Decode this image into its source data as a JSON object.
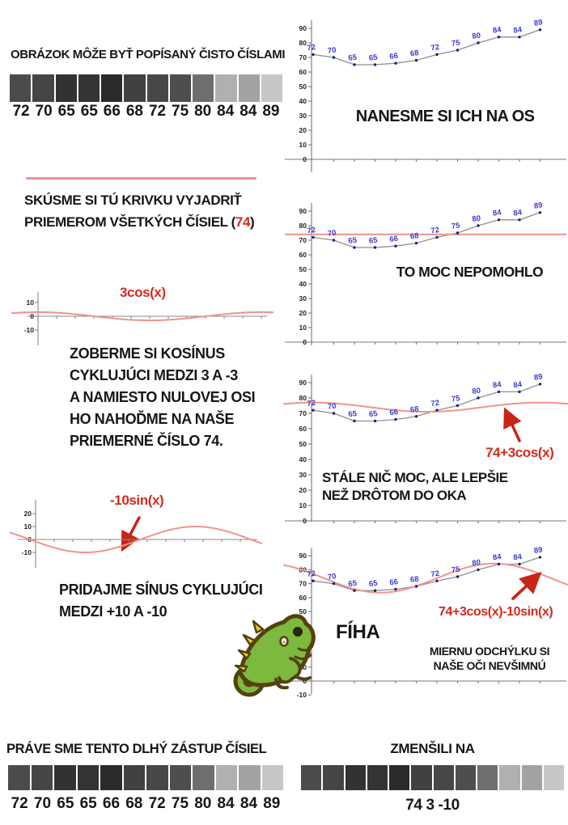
{
  "colors": {
    "salmon": "#f2938a",
    "hand_red": "#d42a1e",
    "blue": "#3b3bd2",
    "axis_gray": "#777777",
    "line_gray": "#8e8e8e",
    "dot_navy": "#20207a"
  },
  "strip": {
    "values": [
      72,
      70,
      65,
      65,
      66,
      68,
      72,
      75,
      80,
      84,
      84,
      89
    ],
    "grays": [
      "#4b4b4b",
      "#454545",
      "#323232",
      "#343434",
      "#2a2a2a",
      "#414141",
      "#474747",
      "#4e4e4e",
      "#6e6e6e",
      "#b0b0b0",
      "#a3a3a3",
      "#c7c7c7"
    ]
  },
  "left": {
    "title": "OBRÁZOK MÔŽE BYŤ POPÍSANÝ ČISTO ČÍSLAMI",
    "skusme_l1": "SKÚSME SI TÚ KRIVKU VYJADRIŤ",
    "avg_prefix": "PRIEMEROM VŠETKÝCH ČÍSIEL (",
    "avg_value": "74",
    "avg_suffix": ")",
    "zoberme_l1": "ZOBERME SI KOSÍNUS",
    "zoberme_l2": "CYKLUJÚCI MEDZI 3 A -3",
    "zoberme_l3": "A NAMIESTO NULOVEJ OSI",
    "zoberme_l4": "HO NAHOĎME NA NAŠE",
    "zoberme_l5": "PRIEMERNÉ ČÍSLO 74.",
    "pridajme_l1": "PRIDAJME SÍNUS CYKLUJÚCI",
    "pridajme_l2": "MEDZI +10 A -10"
  },
  "chart_data": [
    {
      "id": "c1",
      "type": "line",
      "caption": "NANESME SI ICH NA OS",
      "x": [
        1,
        2,
        3,
        4,
        5,
        6,
        7,
        8,
        9,
        10,
        11,
        12
      ],
      "values": [
        72,
        70,
        65,
        65,
        66,
        68,
        72,
        75,
        80,
        84,
        84,
        89
      ],
      "ylim": [
        0,
        90
      ],
      "grid": false,
      "point_labels": true
    },
    {
      "id": "c2",
      "type": "line",
      "caption": "TO MOC NEPOMOHLO",
      "x": [
        1,
        2,
        3,
        4,
        5,
        6,
        7,
        8,
        9,
        10,
        11,
        12
      ],
      "values": [
        72,
        70,
        65,
        65,
        66,
        68,
        72,
        75,
        80,
        84,
        84,
        89
      ],
      "ylim": [
        0,
        90
      ],
      "overlay": {
        "kind": "hline",
        "base": 74
      }
    },
    {
      "id": "smallcos",
      "type": "line",
      "label": "3cos(x)",
      "yticks": [
        10,
        0,
        -10
      ],
      "ylim": [
        -10,
        10
      ],
      "overlay": {
        "kind": "wave",
        "base": 0,
        "cos_amp": 3,
        "sin_amp": 0
      }
    },
    {
      "id": "c3",
      "type": "line",
      "caption_l1": "STÁLE NIČ MOC, ALE LEPŠIE",
      "caption_l2": "NEŽ DRÔTOM DO OKA",
      "x": [
        1,
        2,
        3,
        4,
        5,
        6,
        7,
        8,
        9,
        10,
        11,
        12
      ],
      "values": [
        72,
        70,
        65,
        65,
        66,
        68,
        72,
        75,
        80,
        84,
        84,
        89
      ],
      "ylim": [
        0,
        90
      ],
      "overlay": {
        "kind": "wave",
        "base": 74,
        "cos_amp": 3,
        "sin_amp": 0,
        "label": "74+3cos(x)"
      }
    },
    {
      "id": "smallsin",
      "type": "line",
      "label": "-10sin(x)",
      "yticks": [
        20,
        10,
        0,
        -10
      ],
      "ylim": [
        -10,
        20
      ],
      "overlay": {
        "kind": "wave",
        "base": 0,
        "cos_amp": 0,
        "sin_amp": -10
      }
    },
    {
      "id": "c4",
      "type": "line",
      "caption": "FÍHA",
      "caption2_l1": "MIERNU ODCHÝLKU SI",
      "caption2_l2": "NAŠE OČI NEVŠIMNÚ",
      "x": [
        1,
        2,
        3,
        4,
        5,
        6,
        7,
        8,
        9,
        10,
        11,
        12
      ],
      "values": [
        72,
        70,
        65,
        65,
        66,
        68,
        72,
        75,
        80,
        84,
        84,
        89
      ],
      "ylim": [
        -10,
        90
      ],
      "overlay": {
        "kind": "wave",
        "base": 74,
        "cos_amp": 3,
        "sin_amp": -10,
        "label": "74+3cos(x)-10sin(x)"
      }
    }
  ],
  "bottom": {
    "left_caption": "PRÁVE SME TENTO DLHÝ ZÁSTUP ČÍSIEL",
    "right_caption": "ZMENŠILI NA",
    "right_numbers": "74 3 -10"
  }
}
